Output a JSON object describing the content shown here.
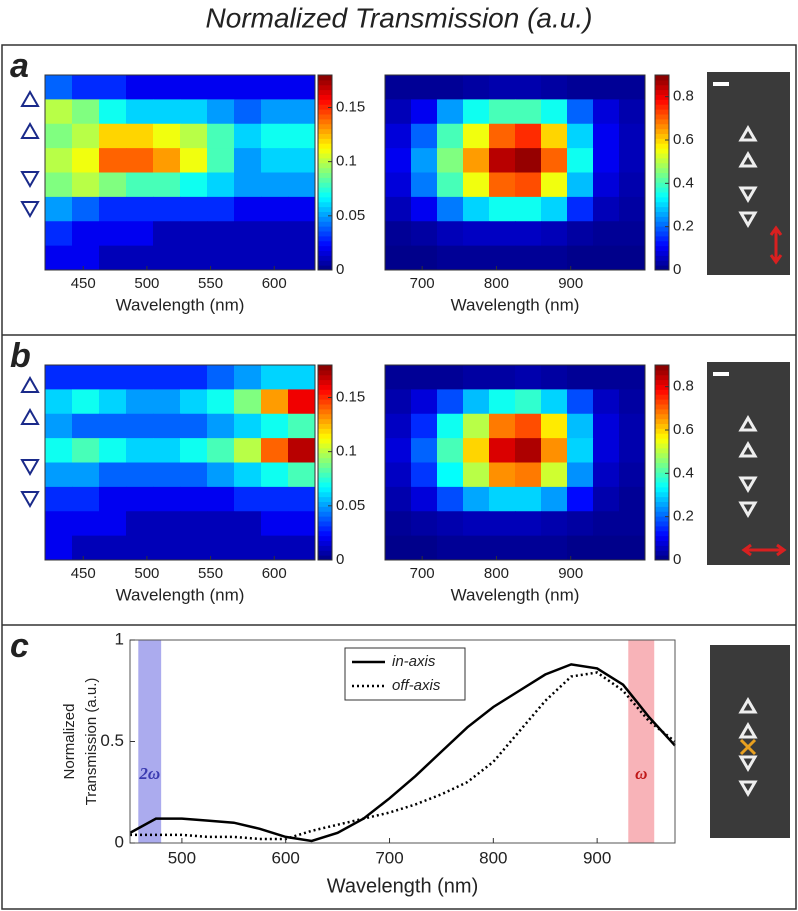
{
  "title": "Normalized Transmission (a.u.)",
  "panel_labels": [
    "a",
    "b",
    "c"
  ],
  "chart_data": [
    {
      "type": "heatmap",
      "xlabel": "Wavelength (nm)",
      "xlim": [
        420,
        632
      ],
      "xticks": [
        450,
        500,
        550,
        600
      ],
      "colormap": "jet",
      "clim": [
        0,
        0.18
      ],
      "cticks": [
        0,
        0.05,
        0.1,
        0.15
      ],
      "z": [
        [
          0.04,
          0.03,
          0.03,
          0.02,
          0.02,
          0.02,
          0.02,
          0.02,
          0.02,
          0.02
        ],
        [
          0.1,
          0.09,
          0.07,
          0.06,
          0.06,
          0.06,
          0.05,
          0.04,
          0.05,
          0.05
        ],
        [
          0.09,
          0.1,
          0.12,
          0.12,
          0.11,
          0.1,
          0.08,
          0.06,
          0.07,
          0.07
        ],
        [
          0.1,
          0.11,
          0.14,
          0.14,
          0.13,
          0.11,
          0.08,
          0.05,
          0.06,
          0.06
        ],
        [
          0.09,
          0.1,
          0.09,
          0.08,
          0.08,
          0.07,
          0.06,
          0.05,
          0.05,
          0.05
        ],
        [
          0.05,
          0.04,
          0.03,
          0.03,
          0.03,
          0.03,
          0.03,
          0.02,
          0.02,
          0.02
        ],
        [
          0.03,
          0.02,
          0.02,
          0.02,
          0.01,
          0.01,
          0.01,
          0.01,
          0.01,
          0.01
        ],
        [
          0.02,
          0.02,
          0.01,
          0.01,
          0.01,
          0.01,
          0.01,
          0.01,
          0.01,
          0.01
        ]
      ]
    },
    {
      "type": "heatmap",
      "xlabel": "Wavelength (nm)",
      "xlim": [
        650,
        1000
      ],
      "xticks": [
        700,
        800,
        900
      ],
      "colormap": "jet",
      "clim": [
        0,
        0.9
      ],
      "cticks": [
        0,
        0.2,
        0.4,
        0.6,
        0.8
      ],
      "z": [
        [
          0.02,
          0.02,
          0.02,
          0.03,
          0.04,
          0.04,
          0.03,
          0.02,
          0.02,
          0.02
        ],
        [
          0.05,
          0.1,
          0.25,
          0.35,
          0.4,
          0.4,
          0.35,
          0.2,
          0.08,
          0.04
        ],
        [
          0.08,
          0.2,
          0.4,
          0.55,
          0.7,
          0.75,
          0.6,
          0.3,
          0.1,
          0.05
        ],
        [
          0.1,
          0.25,
          0.45,
          0.65,
          0.85,
          0.88,
          0.7,
          0.35,
          0.1,
          0.05
        ],
        [
          0.08,
          0.22,
          0.4,
          0.55,
          0.7,
          0.72,
          0.55,
          0.28,
          0.08,
          0.04
        ],
        [
          0.05,
          0.1,
          0.22,
          0.3,
          0.35,
          0.35,
          0.3,
          0.15,
          0.05,
          0.03
        ],
        [
          0.02,
          0.03,
          0.05,
          0.06,
          0.06,
          0.06,
          0.05,
          0.03,
          0.02,
          0.02
        ],
        [
          0.01,
          0.01,
          0.02,
          0.02,
          0.02,
          0.02,
          0.02,
          0.01,
          0.01,
          0.01
        ]
      ]
    },
    {
      "type": "heatmap",
      "xlabel": "Wavelength (nm)",
      "xlim": [
        420,
        632
      ],
      "xticks": [
        450,
        500,
        550,
        600
      ],
      "colormap": "jet",
      "clim": [
        0,
        0.18
      ],
      "cticks": [
        0,
        0.05,
        0.1,
        0.15
      ],
      "z": [
        [
          0.03,
          0.03,
          0.03,
          0.03,
          0.03,
          0.03,
          0.04,
          0.05,
          0.06,
          0.06
        ],
        [
          0.06,
          0.07,
          0.06,
          0.05,
          0.05,
          0.06,
          0.07,
          0.09,
          0.13,
          0.16
        ],
        [
          0.05,
          0.04,
          0.04,
          0.04,
          0.04,
          0.04,
          0.05,
          0.06,
          0.07,
          0.08
        ],
        [
          0.07,
          0.08,
          0.07,
          0.06,
          0.06,
          0.07,
          0.08,
          0.1,
          0.14,
          0.17
        ],
        [
          0.05,
          0.05,
          0.04,
          0.04,
          0.04,
          0.04,
          0.05,
          0.06,
          0.07,
          0.08
        ],
        [
          0.03,
          0.03,
          0.02,
          0.02,
          0.02,
          0.02,
          0.02,
          0.03,
          0.03,
          0.03
        ],
        [
          0.02,
          0.02,
          0.02,
          0.01,
          0.01,
          0.01,
          0.01,
          0.01,
          0.02,
          0.02
        ],
        [
          0.02,
          0.01,
          0.01,
          0.01,
          0.01,
          0.01,
          0.01,
          0.01,
          0.01,
          0.01
        ]
      ]
    },
    {
      "type": "heatmap",
      "xlabel": "Wavelength (nm)",
      "xlim": [
        650,
        1000
      ],
      "xticks": [
        700,
        800,
        900
      ],
      "colormap": "jet",
      "clim": [
        0,
        0.9
      ],
      "cticks": [
        0,
        0.2,
        0.4,
        0.6,
        0.8
      ],
      "z": [
        [
          0.02,
          0.02,
          0.02,
          0.03,
          0.03,
          0.04,
          0.03,
          0.02,
          0.02,
          0.02
        ],
        [
          0.04,
          0.08,
          0.18,
          0.28,
          0.35,
          0.38,
          0.3,
          0.18,
          0.06,
          0.03
        ],
        [
          0.06,
          0.15,
          0.35,
          0.5,
          0.68,
          0.72,
          0.58,
          0.28,
          0.08,
          0.04
        ],
        [
          0.08,
          0.2,
          0.4,
          0.6,
          0.82,
          0.86,
          0.66,
          0.3,
          0.08,
          0.04
        ],
        [
          0.06,
          0.16,
          0.34,
          0.5,
          0.66,
          0.68,
          0.52,
          0.24,
          0.06,
          0.03
        ],
        [
          0.04,
          0.08,
          0.18,
          0.26,
          0.3,
          0.3,
          0.25,
          0.12,
          0.04,
          0.02
        ],
        [
          0.02,
          0.03,
          0.04,
          0.05,
          0.05,
          0.05,
          0.04,
          0.03,
          0.02,
          0.02
        ],
        [
          0.01,
          0.01,
          0.02,
          0.02,
          0.02,
          0.02,
          0.02,
          0.01,
          0.01,
          0.01
        ]
      ]
    },
    {
      "type": "line",
      "xlabel": "Wavelength (nm)",
      "ylabel": [
        "Normalized",
        "Transmission (a.u.)"
      ],
      "xlim": [
        450,
        975
      ],
      "ylim": [
        0,
        1
      ],
      "xticks": [
        500,
        600,
        700,
        800,
        900
      ],
      "yticks": [
        0,
        0.5,
        1
      ],
      "x": [
        450,
        475,
        500,
        525,
        550,
        575,
        600,
        625,
        650,
        675,
        700,
        725,
        750,
        775,
        800,
        825,
        850,
        875,
        900,
        925,
        950,
        975
      ],
      "series": [
        {
          "name": "in-axis",
          "color": "#000000",
          "dash": "solid",
          "values": [
            0.05,
            0.12,
            0.12,
            0.11,
            0.1,
            0.07,
            0.03,
            0.01,
            0.05,
            0.12,
            0.22,
            0.33,
            0.45,
            0.57,
            0.67,
            0.75,
            0.83,
            0.88,
            0.86,
            0.78,
            0.62,
            0.48
          ]
        },
        {
          "name": "off-axis",
          "color": "#000000",
          "dash": "dotted",
          "values": [
            0.04,
            0.04,
            0.04,
            0.03,
            0.03,
            0.02,
            0.02,
            0.06,
            0.09,
            0.12,
            0.15,
            0.19,
            0.24,
            0.3,
            0.4,
            0.55,
            0.7,
            0.82,
            0.84,
            0.75,
            0.6,
            0.5
          ]
        }
      ],
      "bands": [
        {
          "label": "2ω",
          "range": [
            458,
            480
          ],
          "color": "#8f8fe8"
        },
        {
          "label": "ω",
          "range": [
            930,
            955
          ],
          "color": "#f59aa0"
        }
      ]
    }
  ]
}
